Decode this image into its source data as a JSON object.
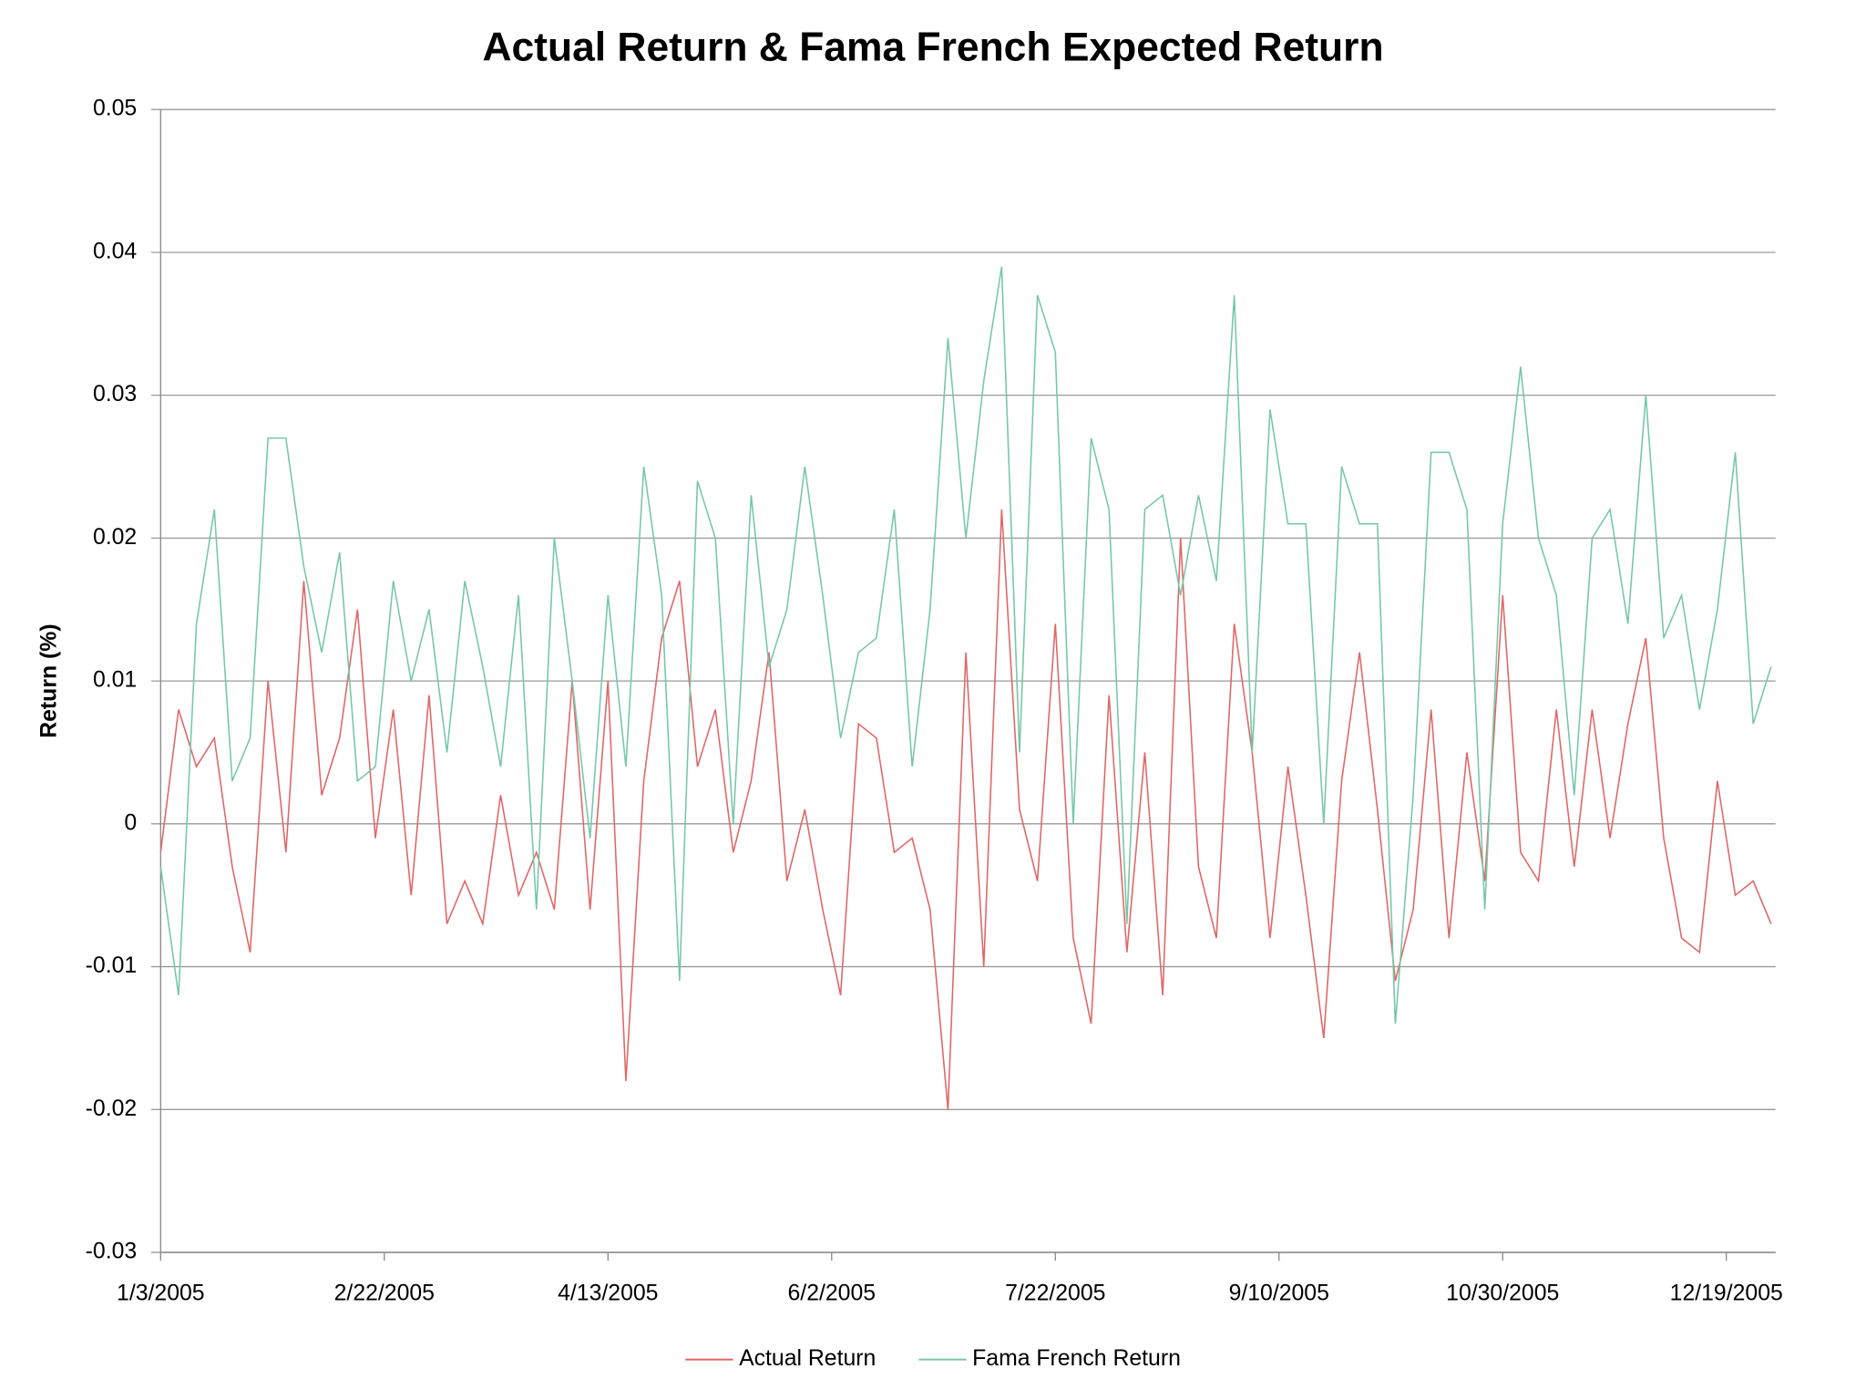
{
  "chart_data": {
    "type": "line",
    "title": "Actual Return & Fama French Expected Return",
    "y_label": "Return (%)",
    "x": [
      "1/3/2005",
      "1/7/2005",
      "1/11/2005",
      "1/15/2005",
      "1/19/2005",
      "1/23/2005",
      "1/27/2005",
      "1/31/2005",
      "2/4/2005",
      "2/8/2005",
      "2/12/2005",
      "2/16/2005",
      "2/20/2005",
      "2/24/2005",
      "2/28/2005",
      "3/4/2005",
      "3/8/2005",
      "3/12/2005",
      "3/16/2005",
      "3/20/2005",
      "3/24/2005",
      "3/28/2005",
      "4/1/2005",
      "4/5/2005",
      "4/9/2005",
      "4/13/2005",
      "4/17/2005",
      "4/21/2005",
      "4/25/2005",
      "4/29/2005",
      "5/3/2005",
      "5/7/2005",
      "5/11/2005",
      "5/15/2005",
      "5/19/2005",
      "5/23/2005",
      "5/27/2005",
      "5/31/2005",
      "6/4/2005",
      "6/8/2005",
      "6/12/2005",
      "6/16/2005",
      "6/20/2005",
      "6/24/2005",
      "6/28/2005",
      "7/2/2005",
      "7/6/2005",
      "7/10/2005",
      "7/14/2005",
      "7/18/2005",
      "7/22/2005",
      "7/26/2005",
      "7/30/2005",
      "8/3/2005",
      "8/7/2005",
      "8/11/2005",
      "8/15/2005",
      "8/19/2005",
      "8/23/2005",
      "8/27/2005",
      "8/31/2005",
      "9/4/2005",
      "9/8/2005",
      "9/12/2005",
      "9/16/2005",
      "9/20/2005",
      "9/24/2005",
      "9/28/2005",
      "10/2/2005",
      "10/6/2005",
      "10/10/2005",
      "10/14/2005",
      "10/18/2005",
      "10/22/2005",
      "10/26/2005",
      "10/30/2005",
      "11/3/2005",
      "11/7/2005",
      "11/11/2005",
      "11/15/2005",
      "11/19/2005",
      "11/23/2005",
      "11/27/2005",
      "12/1/2005",
      "12/5/2005",
      "12/9/2005",
      "12/13/2005",
      "12/17/2005",
      "12/21/2005",
      "12/25/2005",
      "12/29/2005"
    ],
    "series": [
      {
        "name": "Actual Return",
        "color": "#e06666",
        "values": [
          -0.002,
          0.008,
          0.004,
          0.006,
          -0.003,
          -0.009,
          0.01,
          -0.002,
          0.017,
          0.002,
          0.006,
          0.015,
          -0.001,
          0.008,
          -0.005,
          0.009,
          -0.007,
          -0.004,
          -0.007,
          0.002,
          -0.005,
          -0.002,
          -0.006,
          0.01,
          -0.006,
          0.01,
          -0.018,
          0.003,
          0.013,
          0.017,
          0.004,
          0.008,
          -0.002,
          0.003,
          0.012,
          -0.004,
          0.001,
          -0.006,
          -0.012,
          0.007,
          0.006,
          -0.002,
          -0.001,
          -0.006,
          -0.02,
          0.012,
          -0.01,
          0.022,
          0.001,
          -0.004,
          0.014,
          -0.008,
          -0.014,
          0.009,
          -0.009,
          0.005,
          -0.012,
          0.02,
          -0.003,
          -0.008,
          0.014,
          0.005,
          -0.008,
          0.004,
          -0.005,
          -0.015,
          0.003,
          0.012,
          0.001,
          -0.011,
          -0.006,
          0.008,
          -0.008,
          0.005,
          -0.004,
          0.016,
          -0.002,
          -0.004,
          0.008,
          -0.003,
          0.008,
          -0.001,
          0.007,
          0.013,
          -0.001,
          -0.008,
          -0.009,
          0.003,
          -0.005,
          -0.004,
          -0.007
        ]
      },
      {
        "name": "Fama French Return",
        "color": "#76c7a8",
        "values": [
          -0.003,
          -0.012,
          0.014,
          0.022,
          0.003,
          0.006,
          0.027,
          0.027,
          0.018,
          0.012,
          0.019,
          0.003,
          0.004,
          0.017,
          0.01,
          0.015,
          0.005,
          0.017,
          0.011,
          0.004,
          0.016,
          -0.006,
          0.02,
          0.01,
          -0.001,
          0.016,
          0.004,
          0.025,
          0.016,
          -0.011,
          0.024,
          0.02,
          0.0,
          0.023,
          0.011,
          0.015,
          0.025,
          0.016,
          0.006,
          0.012,
          0.013,
          0.022,
          0.004,
          0.015,
          0.034,
          0.02,
          0.031,
          0.039,
          0.005,
          0.037,
          0.033,
          0.0,
          0.027,
          0.022,
          -0.007,
          0.022,
          0.023,
          0.016,
          0.023,
          0.017,
          0.037,
          0.005,
          0.029,
          0.021,
          0.021,
          0.0,
          0.025,
          0.021,
          0.021,
          -0.014,
          0.002,
          0.026,
          0.026,
          0.022,
          -0.006,
          0.021,
          0.032,
          0.02,
          0.016,
          0.002,
          0.02,
          0.022,
          0.014,
          0.03,
          0.013,
          0.016,
          0.008,
          0.015,
          0.026,
          0.007,
          0.011
        ]
      }
    ],
    "xlim": [
      "1/3/2005",
      "12/30/2005"
    ],
    "xticks": [
      "1/3/2005",
      "2/22/2005",
      "4/13/2005",
      "6/2/2005",
      "7/22/2005",
      "9/10/2005",
      "10/30/2005",
      "12/19/2005"
    ],
    "ylim": [
      -0.03,
      0.05
    ],
    "yticks": [
      -0.03,
      -0.02,
      -0.01,
      0,
      0.01,
      0.02,
      0.03,
      0.04,
      0.05
    ],
    "grid": true,
    "legend": "bottom"
  }
}
